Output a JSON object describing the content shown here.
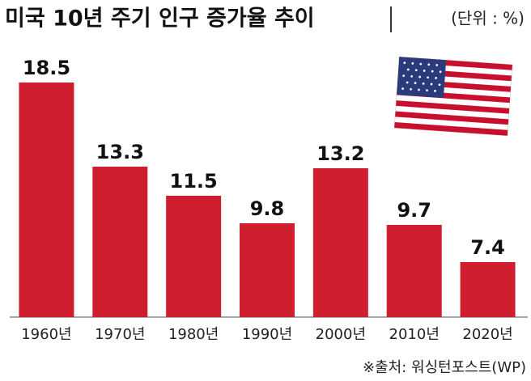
{
  "chart_data": {
    "type": "bar",
    "title": "미국 10년 주기 인구 증가율 추이",
    "unit": "(단위 : %)",
    "categories": [
      "1960년",
      "1970년",
      "1980년",
      "1990년",
      "2000년",
      "2010년",
      "2020년"
    ],
    "values": [
      18.5,
      13.3,
      11.5,
      9.8,
      13.2,
      9.7,
      7.4
    ],
    "color": "#cf1f2e",
    "ylim": [
      4,
      18.5
    ],
    "source": "※출처: 워싱턴포스트(WP)"
  }
}
